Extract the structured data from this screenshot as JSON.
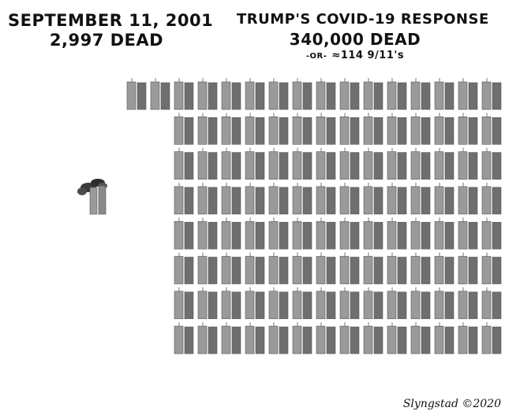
{
  "left_heading": {
    "line1": "SEPTEMBER 11, 2001",
    "line2": "2,997 DEAD"
  },
  "right_heading": {
    "line1": "TRUMP'S COVID-19 RESPONSE",
    "line2": "340,000 DEAD",
    "or": "-OR-",
    "line3": "≈114  9/11's"
  },
  "signature": "Slyngstad ©2020",
  "tower_grid": {
    "count": 114,
    "rows": 8,
    "first_row_count": 16,
    "row_count": 14,
    "tower_color": "#9a9a9a",
    "tower_shade": "#6f6f6f"
  },
  "colors": {
    "background": "#ffffff",
    "ink": "#111111",
    "smoke": "#3a3a3a"
  }
}
